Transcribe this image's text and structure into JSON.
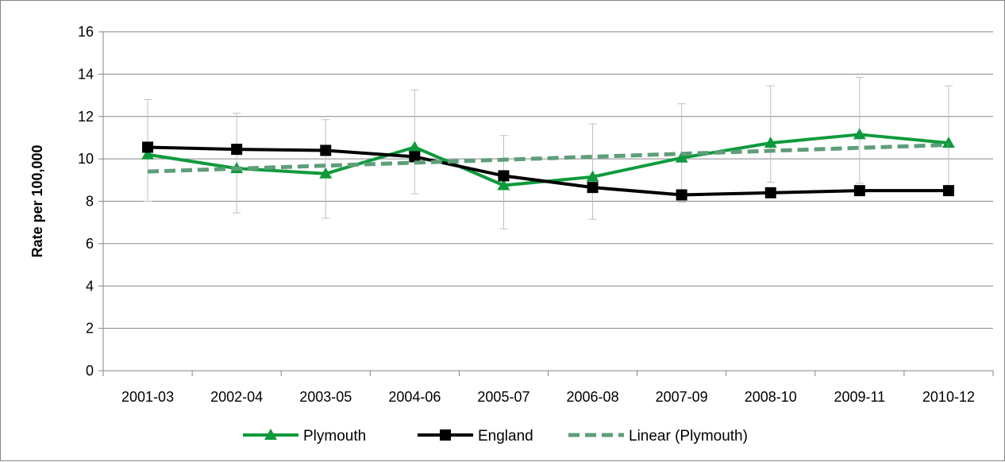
{
  "chart_data": {
    "type": "line",
    "categories": [
      "2001-03",
      "2002-04",
      "2003-05",
      "2004-06",
      "2005-07",
      "2006-08",
      "2007-09",
      "2008-10",
      "2009-11",
      "2010-12"
    ],
    "ylabel": "Rate per 100,000",
    "xlabel": "",
    "ylim": [
      0,
      16
    ],
    "yticks": [
      0,
      2,
      4,
      6,
      8,
      10,
      12,
      14,
      16
    ],
    "grid": true,
    "legend_position": "bottom",
    "series": [
      {
        "name": "Plymouth",
        "color": "#0e9a3c",
        "marker": "triangle",
        "values": [
          10.2,
          9.55,
          9.3,
          10.55,
          8.75,
          9.15,
          10.05,
          10.75,
          11.15,
          10.75
        ],
        "error_low": [
          8.0,
          7.45,
          7.2,
          8.35,
          6.7,
          7.15,
          7.95,
          8.9,
          8.85,
          8.7
        ],
        "error_high": [
          12.8,
          12.15,
          11.85,
          13.25,
          11.1,
          11.65,
          12.6,
          13.45,
          13.85,
          13.45
        ]
      },
      {
        "name": "England",
        "color": "#000000",
        "marker": "square",
        "values": [
          10.55,
          10.45,
          10.4,
          10.1,
          9.2,
          8.65,
          8.3,
          8.4,
          8.5,
          8.5
        ]
      },
      {
        "name": "Linear (Plymouth)",
        "color": "#5e9e78",
        "marker": "none",
        "dashed": true,
        "values": [
          9.4,
          9.54,
          9.68,
          9.82,
          9.96,
          10.1,
          10.24,
          10.38,
          10.52,
          10.66
        ]
      }
    ]
  }
}
